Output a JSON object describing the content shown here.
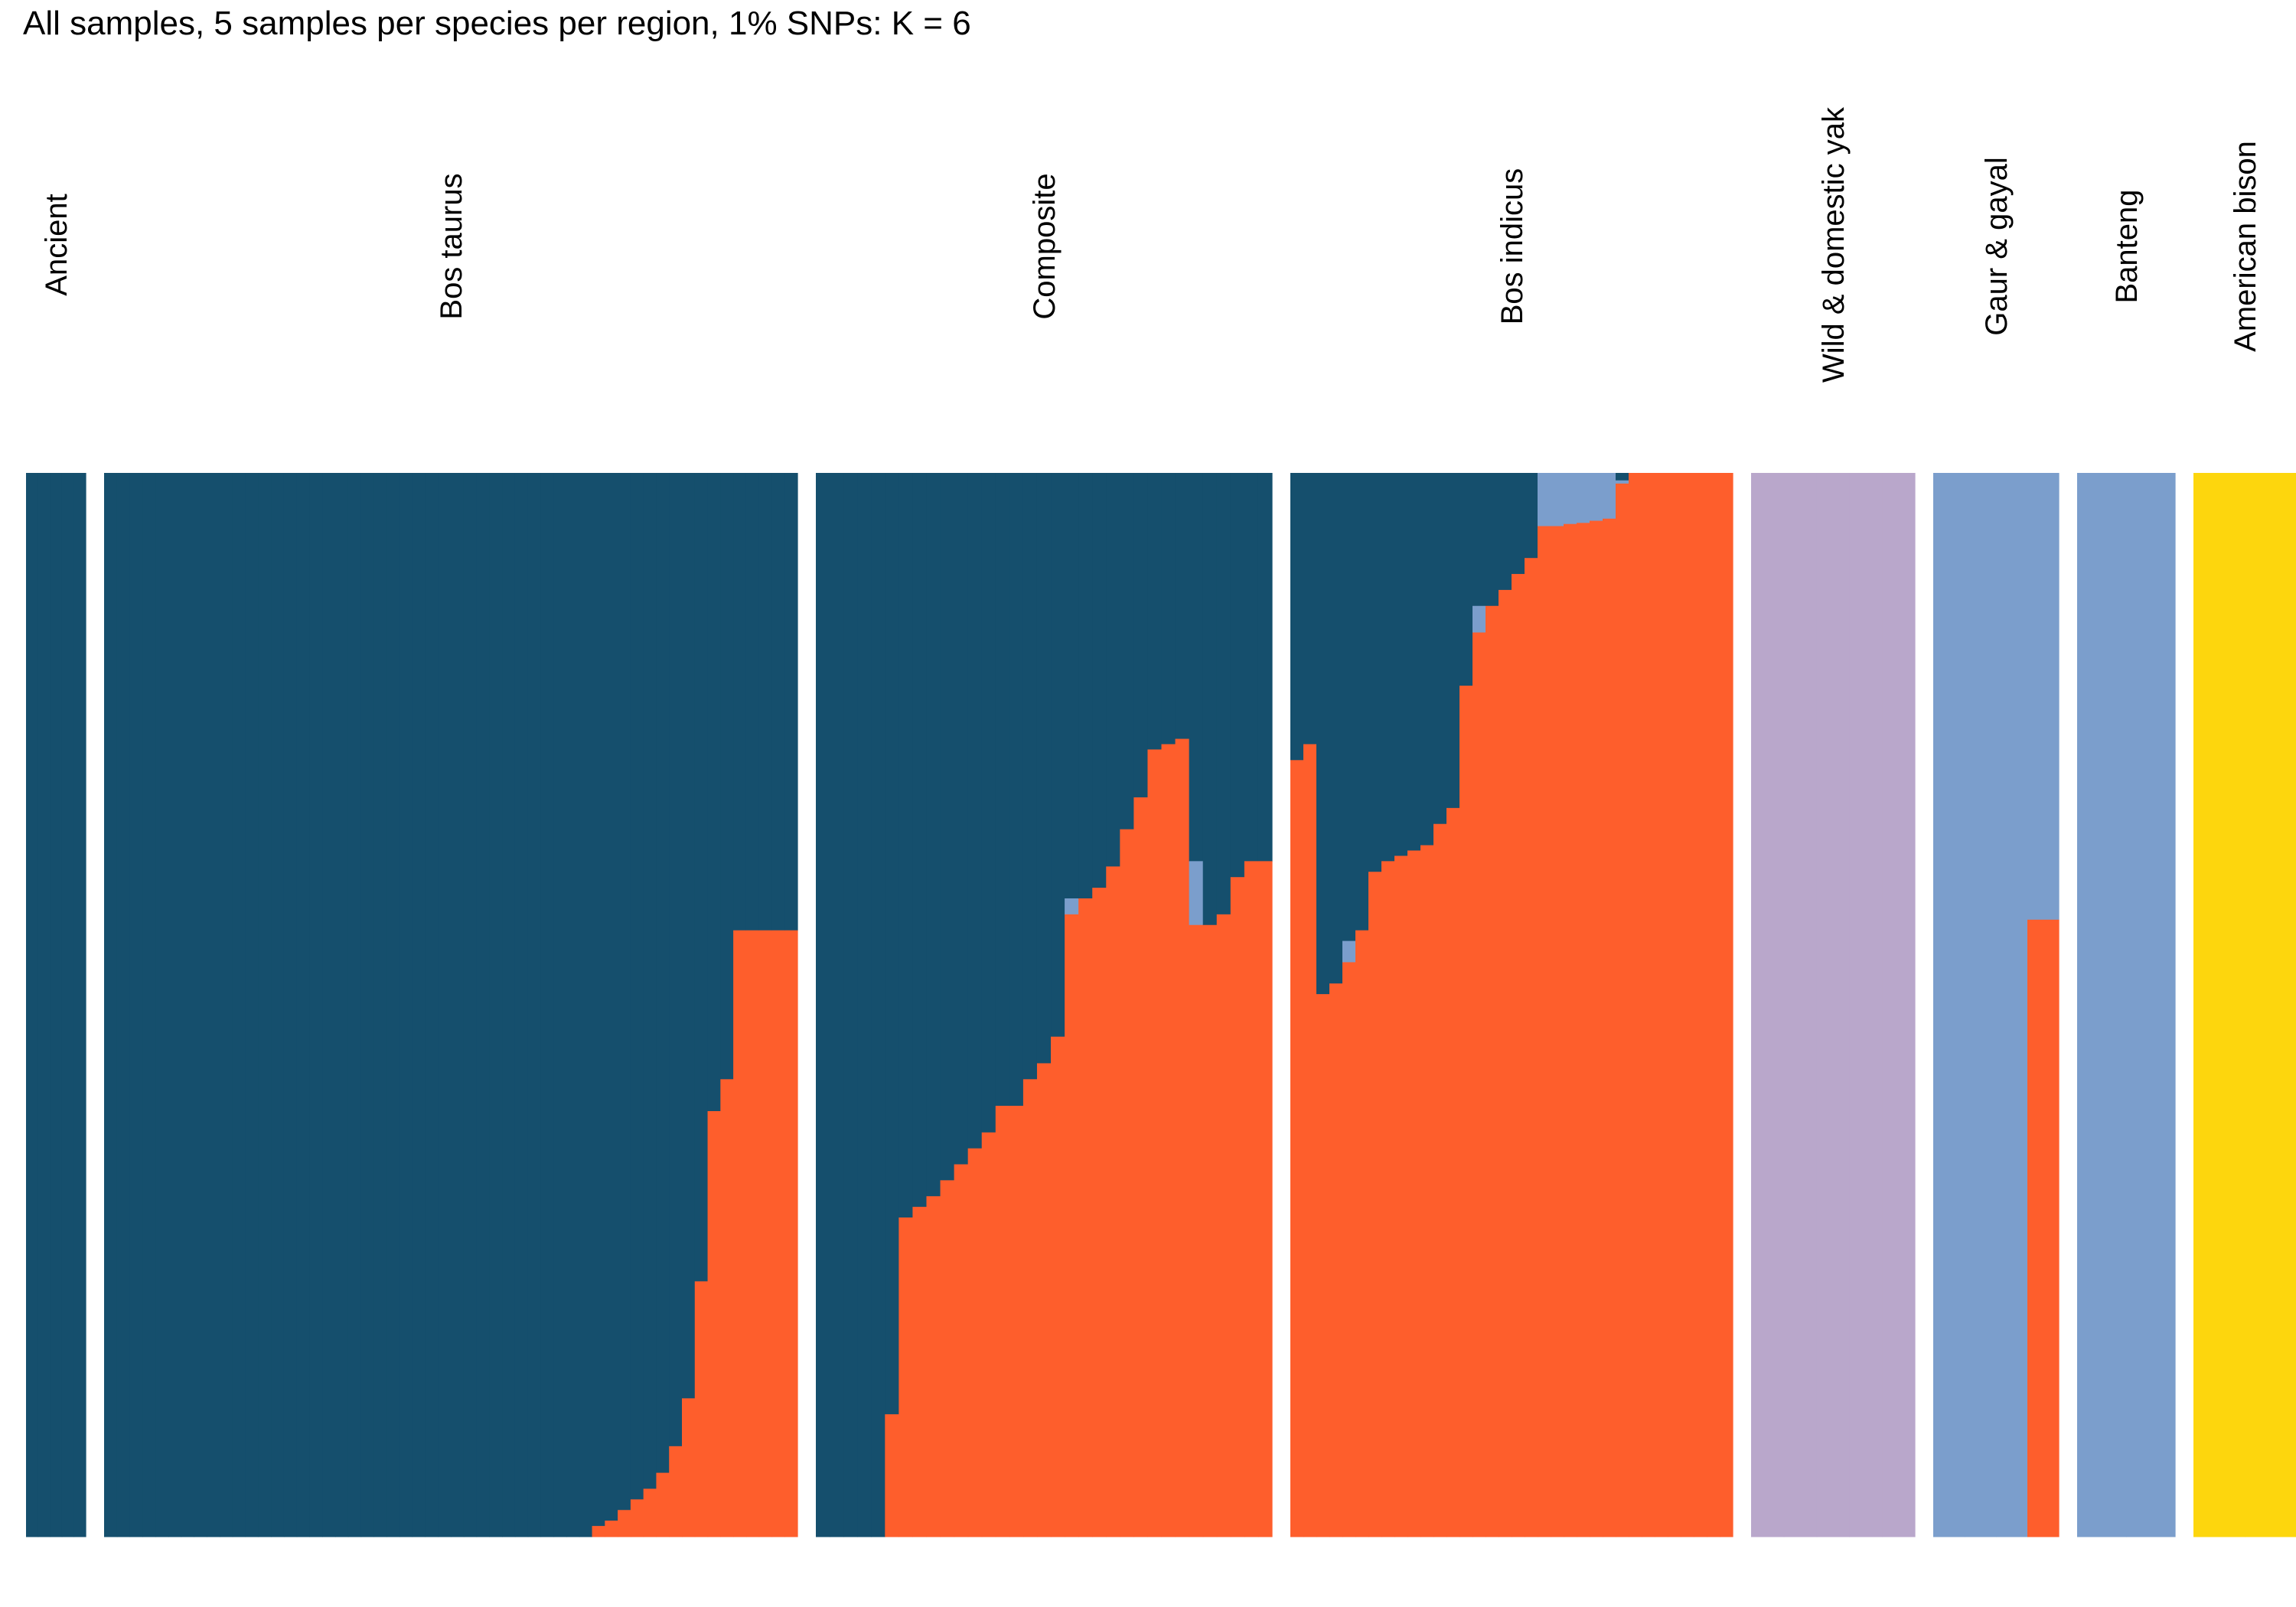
{
  "chart_data": {
    "type": "stacked-bar",
    "title": "All samples, 5 samples per species per region, 1% SNPs: K = 6",
    "xlabel": "",
    "ylabel": "",
    "ylim": [
      0,
      1
    ],
    "grid": false,
    "legend": "none",
    "colors": {
      "taurine": "#154f6d",
      "indicine": "#fe5e2c",
      "gaur_banteng": "#7b9ecc",
      "yak": "#b9a7cb",
      "bison": "#fdd60d",
      "gap": "#ffffff"
    },
    "components": [
      "taurine",
      "gaur_banteng",
      "indicine",
      "yak",
      "bison"
    ],
    "groups": [
      {
        "label": "Ancient",
        "samples": [
          {
            "taurine": 1.0
          },
          {
            "taurine": 1.0
          },
          {
            "taurine": 1.0
          },
          {
            "taurine": 1.0
          },
          {
            "taurine": 1.0
          }
        ]
      },
      {
        "label": "Bos taurus",
        "samples": [
          {
            "taurine": 1.0
          },
          {
            "taurine": 1.0
          },
          {
            "taurine": 1.0
          },
          {
            "taurine": 1.0
          },
          {
            "taurine": 1.0
          },
          {
            "taurine": 1.0
          },
          {
            "taurine": 1.0
          },
          {
            "taurine": 1.0
          },
          {
            "taurine": 1.0
          },
          {
            "taurine": 1.0
          },
          {
            "taurine": 1.0
          },
          {
            "taurine": 1.0
          },
          {
            "taurine": 1.0
          },
          {
            "taurine": 1.0
          },
          {
            "taurine": 1.0
          },
          {
            "taurine": 1.0
          },
          {
            "taurine": 1.0
          },
          {
            "taurine": 1.0
          },
          {
            "taurine": 1.0
          },
          {
            "taurine": 1.0
          },
          {
            "taurine": 1.0
          },
          {
            "taurine": 1.0
          },
          {
            "taurine": 1.0
          },
          {
            "taurine": 1.0
          },
          {
            "taurine": 1.0
          },
          {
            "taurine": 1.0
          },
          {
            "taurine": 1.0
          },
          {
            "taurine": 1.0
          },
          {
            "taurine": 1.0
          },
          {
            "taurine": 1.0
          },
          {
            "taurine": 1.0
          },
          {
            "taurine": 1.0
          },
          {
            "taurine": 1.0
          },
          {
            "taurine": 1.0
          },
          {
            "taurine": 1.0
          },
          {
            "taurine": 1.0
          },
          {
            "taurine": 1.0
          },
          {
            "taurine": 1.0
          },
          {
            "taurine": 0.99,
            "indicine": 0.01
          },
          {
            "taurine": 0.985,
            "indicine": 0.015
          },
          {
            "taurine": 0.975,
            "indicine": 0.025
          },
          {
            "taurine": 0.965,
            "indicine": 0.035
          },
          {
            "taurine": 0.955,
            "indicine": 0.045
          },
          {
            "taurine": 0.94,
            "indicine": 0.06
          },
          {
            "taurine": 0.915,
            "indicine": 0.085
          },
          {
            "taurine": 0.87,
            "indicine": 0.13
          },
          {
            "taurine": 0.76,
            "indicine": 0.24
          },
          {
            "taurine": 0.6,
            "indicine": 0.4
          },
          {
            "taurine": 0.57,
            "indicine": 0.43
          },
          {
            "taurine": 0.43,
            "indicine": 0.57
          },
          {
            "taurine": 0.43,
            "indicine": 0.57
          },
          {
            "taurine": 0.43,
            "indicine": 0.57
          },
          {
            "taurine": 0.43,
            "indicine": 0.57
          },
          {
            "taurine": 0.43,
            "indicine": 0.57
          }
        ]
      },
      {
        "label": "Composite",
        "samples": [
          {
            "taurine": 1.0
          },
          {
            "taurine": 1.0
          },
          {
            "taurine": 1.0
          },
          {
            "taurine": 1.0
          },
          {
            "taurine": 1.0
          },
          {
            "taurine": 0.885,
            "indicine": 0.115
          },
          {
            "taurine": 0.7,
            "indicine": 0.3
          },
          {
            "taurine": 0.69,
            "indicine": 0.31
          },
          {
            "taurine": 0.68,
            "indicine": 0.32
          },
          {
            "taurine": 0.665,
            "indicine": 0.335
          },
          {
            "taurine": 0.65,
            "indicine": 0.35
          },
          {
            "taurine": 0.635,
            "indicine": 0.365
          },
          {
            "taurine": 0.62,
            "indicine": 0.38
          },
          {
            "taurine": 0.595,
            "indicine": 0.405
          },
          {
            "taurine": 0.595,
            "indicine": 0.405
          },
          {
            "taurine": 0.57,
            "indicine": 0.43
          },
          {
            "taurine": 0.555,
            "indicine": 0.445
          },
          {
            "taurine": 0.53,
            "indicine": 0.47
          },
          {
            "taurine": 0.4,
            "gaur_banteng": 0.015,
            "indicine": 0.585
          },
          {
            "taurine": 0.4,
            "indicine": 0.6
          },
          {
            "taurine": 0.39,
            "indicine": 0.61
          },
          {
            "taurine": 0.37,
            "indicine": 0.63
          },
          {
            "taurine": 0.335,
            "indicine": 0.665
          },
          {
            "taurine": 0.305,
            "indicine": 0.695
          },
          {
            "taurine": 0.26,
            "indicine": 0.74
          },
          {
            "taurine": 0.255,
            "indicine": 0.745
          },
          {
            "taurine": 0.25,
            "indicine": 0.75
          },
          {
            "taurine": 0.365,
            "gaur_banteng": 0.06,
            "indicine": 0.575
          },
          {
            "taurine": 0.425,
            "indicine": 0.575
          },
          {
            "taurine": 0.415,
            "indicine": 0.585
          },
          {
            "taurine": 0.38,
            "indicine": 0.62
          },
          {
            "taurine": 0.365,
            "indicine": 0.635
          },
          {
            "taurine": 0.365,
            "indicine": 0.635
          }
        ]
      },
      {
        "label": "Bos indicus",
        "samples": [
          {
            "taurine": 0.27,
            "indicine": 0.73
          },
          {
            "taurine": 0.255,
            "indicine": 0.745
          },
          {
            "taurine": 0.49,
            "indicine": 0.51
          },
          {
            "taurine": 0.48,
            "indicine": 0.52
          },
          {
            "taurine": 0.44,
            "gaur_banteng": 0.02,
            "indicine": 0.54
          },
          {
            "taurine": 0.43,
            "indicine": 0.57
          },
          {
            "taurine": 0.375,
            "indicine": 0.625
          },
          {
            "taurine": 0.365,
            "indicine": 0.635
          },
          {
            "taurine": 0.36,
            "indicine": 0.64
          },
          {
            "taurine": 0.355,
            "indicine": 0.645
          },
          {
            "taurine": 0.35,
            "indicine": 0.65
          },
          {
            "taurine": 0.33,
            "indicine": 0.67
          },
          {
            "taurine": 0.315,
            "indicine": 0.685
          },
          {
            "taurine": 0.2,
            "indicine": 0.8
          },
          {
            "taurine": 0.125,
            "gaur_banteng": 0.025,
            "indicine": 0.85
          },
          {
            "taurine": 0.125,
            "indicine": 0.875
          },
          {
            "taurine": 0.11,
            "indicine": 0.89
          },
          {
            "taurine": 0.095,
            "indicine": 0.905
          },
          {
            "taurine": 0.08,
            "indicine": 0.92
          },
          {
            "gaur_banteng": 0.05,
            "indicine": 0.95
          },
          {
            "gaur_banteng": 0.05,
            "indicine": 0.95
          },
          {
            "gaur_banteng": 0.048,
            "indicine": 0.952
          },
          {
            "gaur_banteng": 0.047,
            "indicine": 0.953
          },
          {
            "gaur_banteng": 0.045,
            "indicine": 0.955
          },
          {
            "gaur_banteng": 0.043,
            "indicine": 0.957
          },
          {
            "taurine": 0.007,
            "gaur_banteng": 0.003,
            "indicine": 0.99
          },
          {
            "indicine": 1.0
          },
          {
            "indicine": 1.0
          },
          {
            "indicine": 1.0
          },
          {
            "indicine": 1.0
          },
          {
            "indicine": 1.0
          },
          {
            "indicine": 1.0
          },
          {
            "indicine": 1.0
          },
          {
            "indicine": 1.0
          }
        ]
      },
      {
        "label": "Wild & domestic yak",
        "samples": [
          {
            "yak": 1.0
          },
          {
            "yak": 1.0
          },
          {
            "yak": 1.0
          },
          {
            "yak": 1.0
          },
          {
            "yak": 1.0
          }
        ]
      },
      {
        "label": "Gaur & gayal",
        "samples": [
          {
            "gaur_banteng": 1.0
          },
          {
            "gaur_banteng": 1.0
          },
          {
            "gaur_banteng": 1.0
          },
          {
            "gaur_banteng": 0.42,
            "indicine": 0.58
          }
        ]
      },
      {
        "label": "Banteng",
        "samples": [
          {
            "gaur_banteng": 1.0
          },
          {
            "gaur_banteng": 1.0
          }
        ]
      },
      {
        "label": "American bison",
        "samples": [
          {
            "bison": 1.0
          },
          {
            "bison": 1.0
          }
        ]
      }
    ]
  }
}
